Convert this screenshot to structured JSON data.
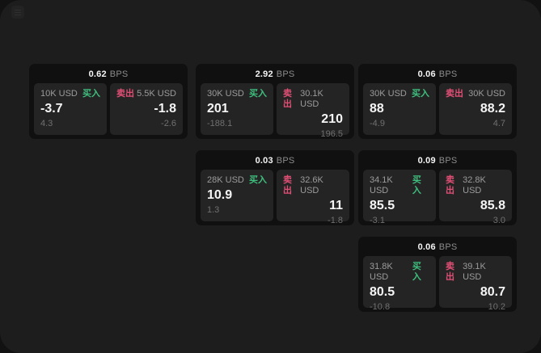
{
  "colors": {
    "buy_accent": "#3fbf7e",
    "sell_accent": "#e14f75"
  },
  "labels": {
    "bps_unit": "BPS",
    "buy": "买入",
    "sell": "卖出"
  },
  "cards": [
    {
      "col": 0,
      "row": 0,
      "bps": "0.62",
      "buy": {
        "amount": "10K USD",
        "value": "-3.7",
        "sub": "4.3"
      },
      "sell": {
        "amount": "5.5K USD",
        "value": "-1.8",
        "sub": "-2.6"
      }
    },
    {
      "col": 1,
      "row": 0,
      "bps": "2.92",
      "buy": {
        "amount": "30K USD",
        "value": "201",
        "sub": "-188.1"
      },
      "sell": {
        "amount": "30.1K USD",
        "value": "210",
        "sub": "196.5"
      }
    },
    {
      "col": 2,
      "row": 0,
      "bps": "0.06",
      "buy": {
        "amount": "30K USD",
        "value": "88",
        "sub": "-4.9"
      },
      "sell": {
        "amount": "30K USD",
        "value": "88.2",
        "sub": "4.7"
      }
    },
    {
      "col": 1,
      "row": 1,
      "bps": "0.03",
      "buy": {
        "amount": "28K USD",
        "value": "10.9",
        "sub": "1.3"
      },
      "sell": {
        "amount": "32.6K USD",
        "value": "11",
        "sub": "-1.8"
      }
    },
    {
      "col": 2,
      "row": 1,
      "bps": "0.09",
      "buy": {
        "amount": "34.1K USD",
        "value": "85.5",
        "sub": "-3.1"
      },
      "sell": {
        "amount": "32.8K USD",
        "value": "85.8",
        "sub": "3.0"
      }
    },
    {
      "col": 2,
      "row": 2,
      "bps": "0.06",
      "buy": {
        "amount": "31.8K USD",
        "value": "80.5",
        "sub": "-10.8"
      },
      "sell": {
        "amount": "39.1K USD",
        "value": "80.7",
        "sub": "10.2"
      }
    }
  ]
}
